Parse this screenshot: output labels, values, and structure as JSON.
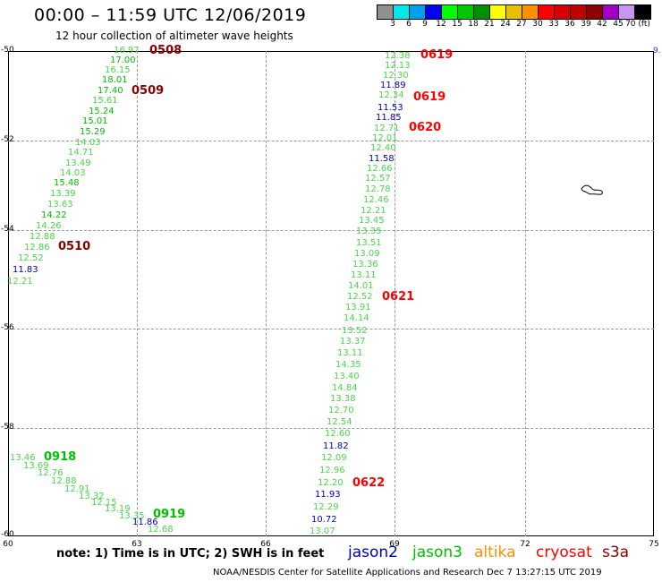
{
  "header": {
    "title": "00:00 – 11:59 UTC 12/06/2019",
    "subtitle": "12 hour collection of altimeter wave heights"
  },
  "colorbar": {
    "colors": [
      "#909090",
      "#00e8e8",
      "#00a0f0",
      "#0000f0",
      "#00ff00",
      "#00c800",
      "#009000",
      "#ffff00",
      "#e8c000",
      "#ff9000",
      "#ff0000",
      "#d60000",
      "#c00000",
      "#900000",
      "#a000c8",
      "#c896f0",
      "#000000"
    ],
    "labels": [
      "3",
      "6",
      "9",
      "12",
      "15",
      "18",
      "21",
      "24",
      "27",
      "30",
      "33",
      "36",
      "39",
      "42",
      "45",
      "70 (ft)"
    ]
  },
  "map": {
    "lat_labels": [
      "-50",
      "-52",
      "-54",
      "-56",
      "-58",
      "-60"
    ],
    "lon_labels": [
      "60",
      "63",
      "66",
      "69",
      "72",
      "75"
    ],
    "right_edge_label": "9."
  },
  "colors": {
    "jason2": "#0000c8",
    "jason3": "#00c000",
    "altika": "#ff9000",
    "cryosat": "#ff0000",
    "s3a": "#8b0000",
    "light_green": "#48d848"
  },
  "tracks": {
    "track1": {
      "values": [
        "16.97",
        "17.00",
        "16.15",
        "18.01",
        "17.40",
        "15.61",
        "15.24",
        "15.01",
        "15.29",
        "14.03",
        "14.71",
        "13.49",
        "14.03",
        "15.48",
        "13.39",
        "13.63",
        "14.22",
        "14.26",
        "12.88",
        "12.86",
        "12.52",
        "11.83",
        "12.21"
      ],
      "times": [
        "0508",
        "0509",
        "0510"
      ]
    },
    "track2": {
      "values": [
        "12.38",
        "12.13",
        "12.30",
        "11.89",
        "12.34",
        "11.53",
        "11.85",
        "12.71",
        "12.01",
        "12.40",
        "11.58",
        "12.66",
        "12.57",
        "12.78",
        "12.46",
        "12.21",
        "13.45",
        "13.35",
        "13.51",
        "13.09",
        "13.36",
        "13.11",
        "14.01",
        "12.52",
        "13.91",
        "14.14",
        "13.52",
        "13.37",
        "13.11",
        "14.35",
        "13.40",
        "14.84",
        "13.38",
        "12.70",
        "12.54",
        "12.60",
        "11.82",
        "12.09",
        "12.96",
        "12.20",
        "11.93",
        "12.29",
        "10.72",
        "13.07"
      ],
      "times": [
        "0619",
        "0619",
        "0620",
        "0621",
        "0622"
      ]
    },
    "track3": {
      "values": [
        "13.46",
        "13.69",
        "12.76",
        "12.88",
        "12.91",
        "13.32",
        "12.15",
        "13.19",
        "13.35",
        "11.86",
        "12.68"
      ],
      "times": [
        "0918",
        "0919"
      ]
    }
  },
  "footer": {
    "note": "note:  1) Time is in UTC;  2) SWH is in feet",
    "satellites": [
      "jason2",
      "jason3",
      "altika",
      "cryosat",
      "s3a"
    ],
    "credit": "NOAA/NESDIS Center for Satellite Applications and Research    Dec  7 13:27:15 UTC 2019"
  }
}
